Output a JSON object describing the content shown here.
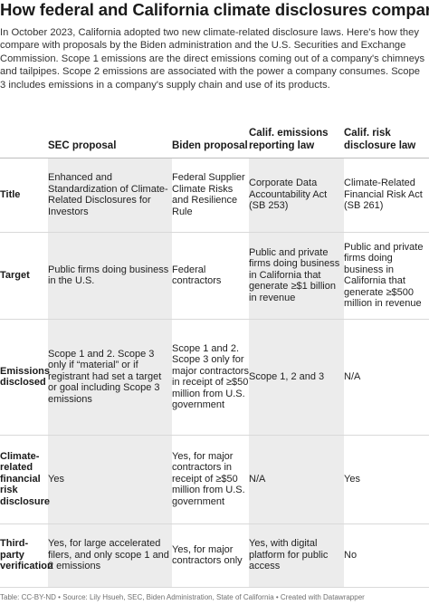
{
  "title": "How federal and California climate disclosures compare",
  "intro": "In October 2023, California adopted two new climate-related disclosure laws. Here's how they compare with proposals by the Biden administration and the U.S. Securities and Exchange Commission. Scope 1 emissions are the direct emissions coming out of a company's chimneys and tailpipes. Scope 2 emissions are associated with the power a company consumes. Scope 3 includes emissions in a company's supply chain and use of its products.",
  "table": {
    "columns": [
      "SEC proposal",
      "Biden proposal",
      "Calif. emissions reporting law",
      "Calif. risk disclosure law"
    ],
    "rows": [
      {
        "label": "Title",
        "cells": [
          "Enhanced and Standardization of Climate-Related Disclosures for Investors",
          "Federal Supplier Climate Risks and Resilience Rule",
          "Corporate Data Accountability Act (SB 253)",
          "Climate-Related Financial Risk Act (SB 261)"
        ]
      },
      {
        "label": "Target",
        "cells": [
          "Public firms doing business in the U.S.",
          "Federal contractors",
          "Public and private firms doing business in California that generate ≥$1 billion in revenue",
          "Public and private firms doing business in California that generate ≥$500 million in revenue"
        ]
      },
      {
        "label": "Emissions disclosed",
        "cells": [
          "Scope 1 and 2. Scope 3 only if “material” or if registrant had set a target or goal including Scope 3 emissions",
          "Scope 1 and 2. Scope 3 only for major contractors in receipt of ≥$50 million from U.S. government",
          "Scope 1, 2 and 3",
          "N/A"
        ]
      },
      {
        "label": "Climate-related financial risk disclosure",
        "cells": [
          "Yes",
          "Yes, for major contractors in receipt of ≥$50 million from U.S. government",
          "N/A",
          "Yes"
        ]
      },
      {
        "label": "Third-party verification",
        "cells": [
          "Yes, for large accelerated filers, and only scope 1 and 2 emissions",
          "Yes, for major contractors only",
          "Yes, with digital platform for public access",
          "No"
        ]
      }
    ]
  },
  "source": "Table: CC-BY-ND • Source: Lily Hsueh, SEC, Biden Administration, State of California • Created with Datawrapper",
  "colors": {
    "shade": "#ececec",
    "rule": "#d9d9d9",
    "text": "#222222"
  }
}
